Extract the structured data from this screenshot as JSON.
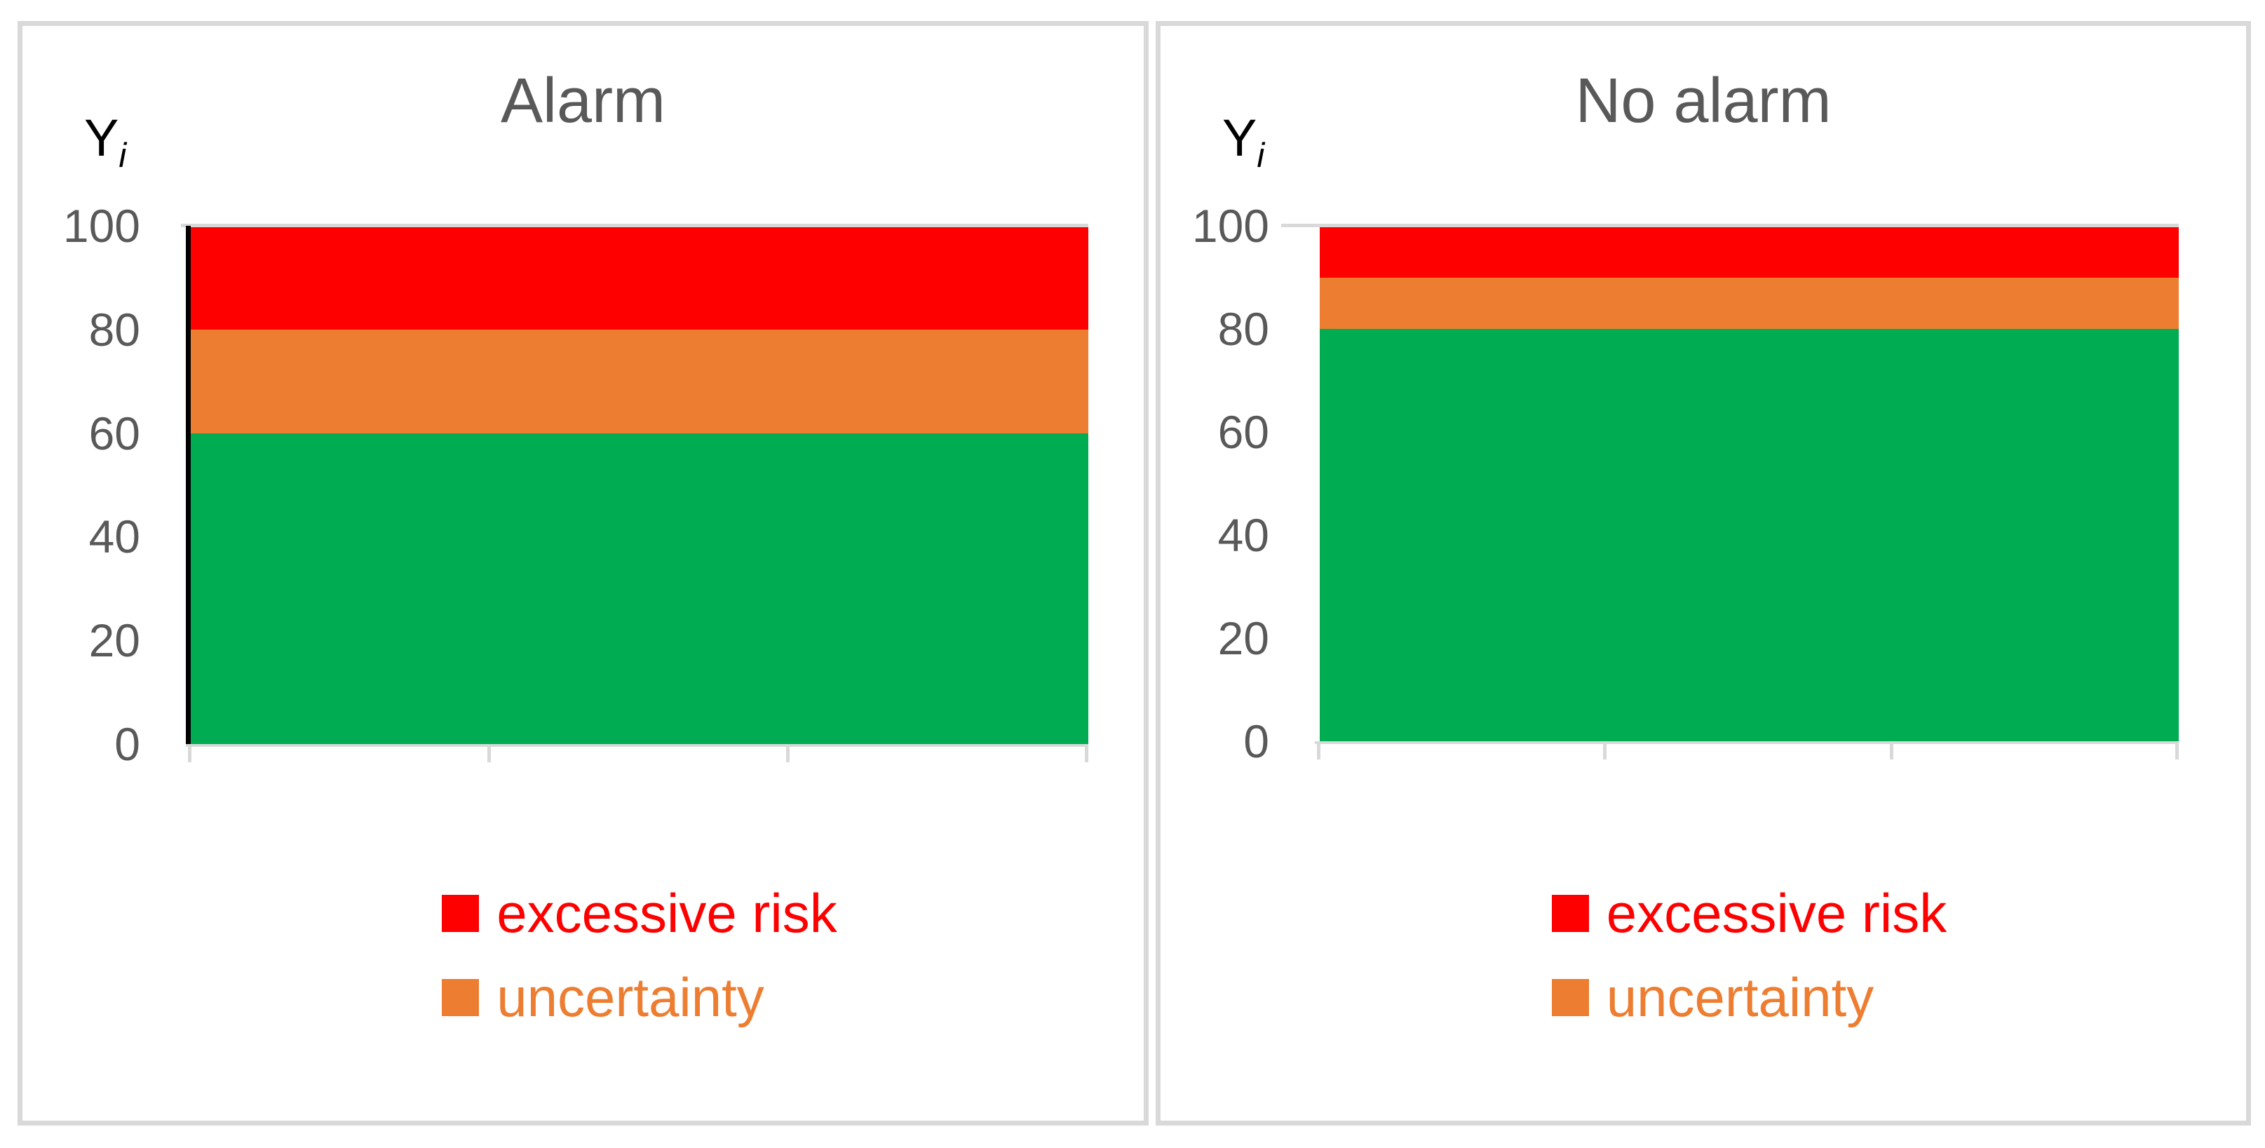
{
  "figure": {
    "background": "#FFFFFF",
    "panel_border_color": "#D9D9D9",
    "axis_color": "#D9D9D9",
    "text_color": "#595959",
    "y_axis_line_color": "#000000"
  },
  "chart_data": [
    {
      "type": "area",
      "title": "Alarm",
      "ylabel": "Y",
      "ylabel_sub": "i",
      "xlabel": "",
      "ylim": [
        0,
        100
      ],
      "yticks": [
        100,
        80,
        60,
        40,
        20,
        0
      ],
      "x_axis_tick_count": 4,
      "grid": false,
      "left_axis_line": true,
      "bands": [
        {
          "name": "",
          "color": "#00AC51",
          "from": 0,
          "to": 60
        },
        {
          "name": "uncertainty",
          "color": "#ED7D31",
          "from": 60,
          "to": 80
        },
        {
          "name": "excessive risk",
          "color": "#FE0000",
          "from": 80,
          "to": 100
        }
      ],
      "legend_position": "bottom",
      "legend": [
        {
          "label": "excessive risk",
          "color": "#FE0000"
        },
        {
          "label": "uncertainty",
          "color": "#ED7D31"
        }
      ]
    },
    {
      "type": "area",
      "title": "No alarm",
      "ylabel": "Y",
      "ylabel_sub": "i",
      "xlabel": "",
      "ylim": [
        0,
        100
      ],
      "yticks": [
        100,
        80,
        60,
        40,
        20,
        0
      ],
      "x_axis_tick_count": 4,
      "grid": false,
      "left_axis_line": false,
      "bands": [
        {
          "name": "",
          "color": "#00AC51",
          "from": 0,
          "to": 80
        },
        {
          "name": "uncertainty",
          "color": "#ED7D31",
          "from": 80,
          "to": 90
        },
        {
          "name": "excessive risk",
          "color": "#FE0000",
          "from": 90,
          "to": 100
        }
      ],
      "legend_position": "bottom",
      "legend": [
        {
          "label": "excessive risk",
          "color": "#FE0000"
        },
        {
          "label": "uncertainty",
          "color": "#ED7D31"
        }
      ]
    }
  ]
}
